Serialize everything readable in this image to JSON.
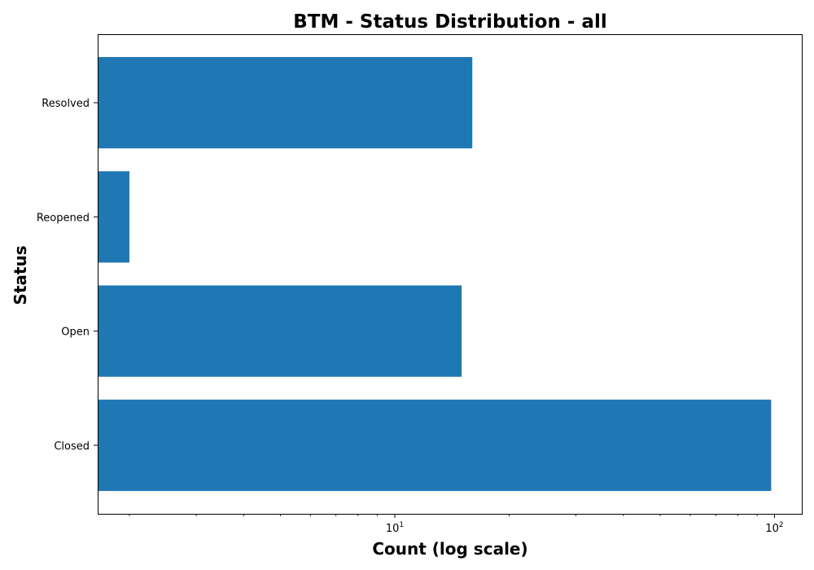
{
  "chart_data": {
    "type": "bar",
    "orientation": "horizontal",
    "title": "BTM - Status Distribution - all",
    "xlabel": "Count (log scale)",
    "ylabel": "Status",
    "xscale": "log",
    "xlim": [
      1.65,
      118
    ],
    "categories": [
      "Closed",
      "Open",
      "Reopened",
      "Resolved"
    ],
    "values": [
      98,
      15,
      2,
      16
    ],
    "x_ticks": [
      {
        "base": "10",
        "exp": "1",
        "value": 10
      },
      {
        "base": "10",
        "exp": "2",
        "value": 100
      }
    ],
    "grid": false,
    "legend": "none",
    "bar_color": "#1f77b4"
  }
}
